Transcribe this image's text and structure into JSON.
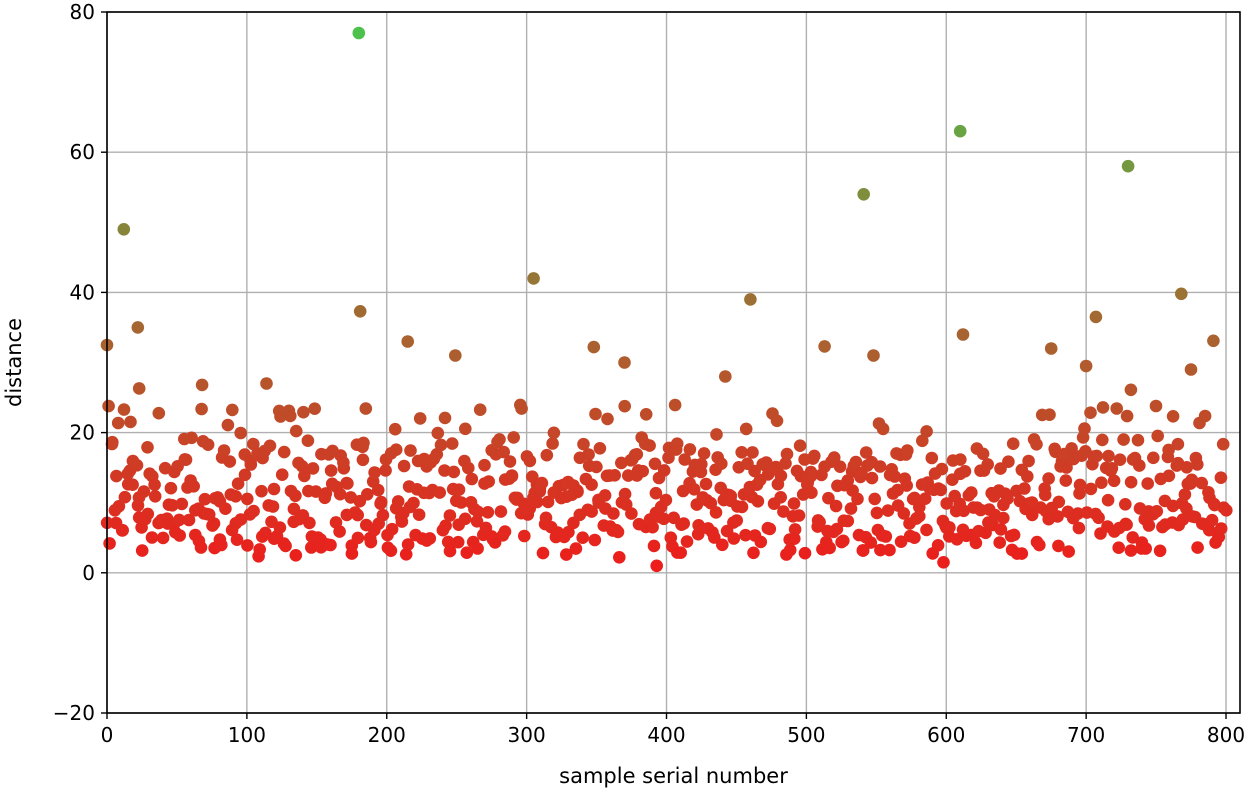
{
  "chart_data": {
    "type": "scatter",
    "title": "",
    "xlabel": "sample serial number",
    "ylabel": "distance",
    "xlim": [
      0,
      810
    ],
    "ylim": [
      -20,
      80
    ],
    "xticks": [
      "0",
      "100",
      "200",
      "300",
      "400",
      "500",
      "600",
      "700",
      "800"
    ],
    "yticks": [
      "−20",
      "0",
      "20",
      "40",
      "60",
      "80"
    ],
    "grid": true,
    "color_scale": {
      "low": "#ef1b1b",
      "high": "#4cc14c",
      "low_value": 0,
      "high_value": 77
    },
    "highlighted_points": [
      {
        "x": 0,
        "y": 32.5
      },
      {
        "x": 12,
        "y": 49
      },
      {
        "x": 22,
        "y": 35
      },
      {
        "x": 23,
        "y": 26.3
      },
      {
        "x": 180,
        "y": 77
      },
      {
        "x": 181,
        "y": 37.3
      },
      {
        "x": 215,
        "y": 33
      },
      {
        "x": 305,
        "y": 42
      },
      {
        "x": 348,
        "y": 32.2
      },
      {
        "x": 460,
        "y": 39
      },
      {
        "x": 513,
        "y": 32.3
      },
      {
        "x": 541,
        "y": 54
      },
      {
        "x": 548,
        "y": 31
      },
      {
        "x": 610,
        "y": 63
      },
      {
        "x": 612,
        "y": 34
      },
      {
        "x": 675,
        "y": 32
      },
      {
        "x": 700,
        "y": 29.5
      },
      {
        "x": 707,
        "y": 36.5
      },
      {
        "x": 730,
        "y": 58
      },
      {
        "x": 732,
        "y": 26.1
      },
      {
        "x": 768,
        "y": 39.8
      },
      {
        "x": 775,
        "y": 29
      },
      {
        "x": 791,
        "y": 33.1
      },
      {
        "x": 249,
        "y": 31
      },
      {
        "x": 370,
        "y": 30
      },
      {
        "x": 68,
        "y": 26.8
      },
      {
        "x": 114,
        "y": 27
      },
      {
        "x": 442,
        "y": 28
      },
      {
        "x": 393,
        "y": 1
      },
      {
        "x": 598,
        "y": 1.5
      },
      {
        "x": 135,
        "y": 2.5
      },
      {
        "x": 499,
        "y": 2.8
      }
    ],
    "bulk_points": {
      "count": 780,
      "x_range": [
        0,
        800
      ],
      "y_range": [
        1,
        25
      ]
    }
  }
}
